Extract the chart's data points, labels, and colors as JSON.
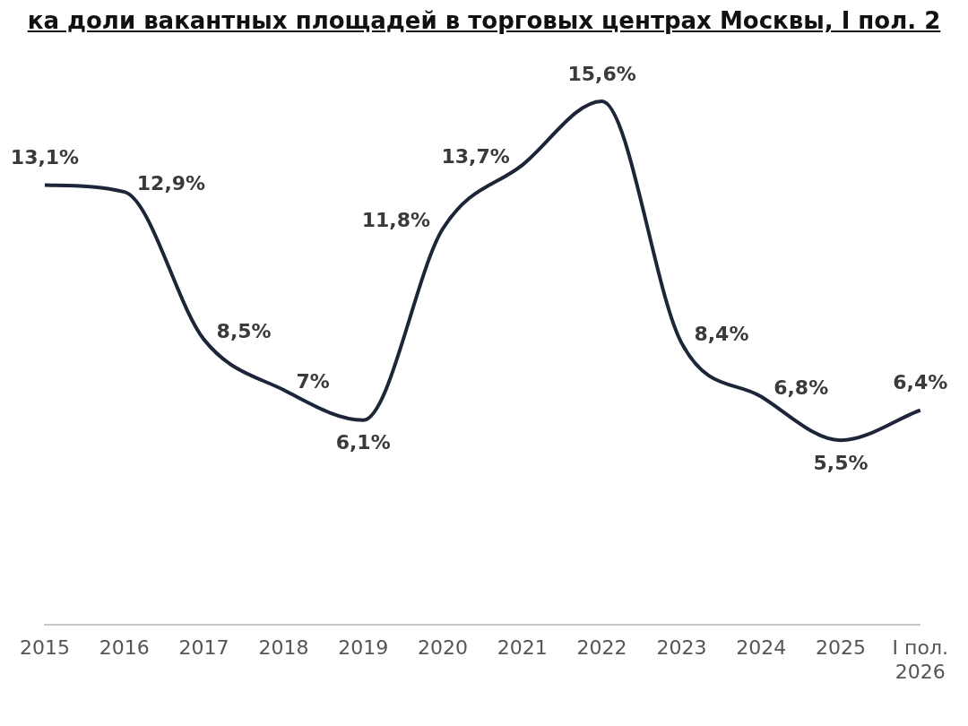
{
  "chart_data": {
    "type": "line",
    "title": "ка доли вакантных площадей в торговых центрах Москвы, I пол. 2",
    "categories": [
      "2015",
      "2016",
      "2017",
      "2018",
      "2019",
      "2020",
      "2021",
      "2022",
      "2023",
      "2024",
      "2025",
      "I пол. 2026"
    ],
    "series": [
      {
        "color": "#1c2638",
        "values": [
          13.1,
          12.9,
          8.5,
          7,
          6.1,
          11.8,
          13.7,
          15.6,
          8.4,
          6.8,
          5.5,
          6.4
        ],
        "value_labels": [
          "13,1%",
          "12,9%",
          "8,5%",
          "7%",
          "6,1%",
          "11,8%",
          "13,7%",
          "15,6%",
          "8,4%",
          "6,8%",
          "5,5%",
          "6,4%"
        ]
      }
    ],
    "marker": "none",
    "grid": false,
    "legend": false
  }
}
